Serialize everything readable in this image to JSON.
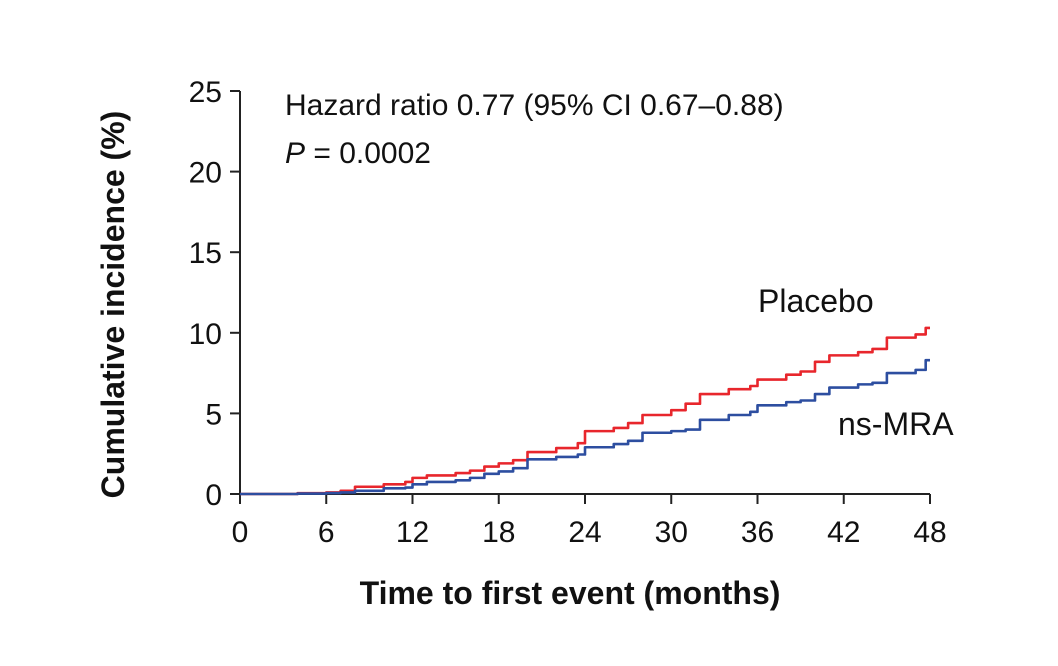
{
  "chart_data": {
    "type": "line",
    "title": "",
    "xlabel": "Time to first event (months)",
    "ylabel": "Cumulative incidence (%)",
    "xlim": [
      0,
      48
    ],
    "ylim": [
      0,
      25
    ],
    "xticks": [
      0,
      6,
      12,
      18,
      24,
      30,
      36,
      42,
      48
    ],
    "yticks": [
      0,
      5,
      10,
      15,
      20,
      25
    ],
    "xtick_labels": [
      "0",
      "6",
      "12",
      "18",
      "24",
      "30",
      "36",
      "42",
      "48"
    ],
    "ytick_labels": [
      "0",
      "5",
      "10",
      "15",
      "20",
      "25"
    ],
    "grid": false,
    "annotations": {
      "hazard_ratio": "Hazard ratio 0.77 (95% CI 0.67–0.88)",
      "p_label": "P",
      "p_value": " = 0.0002"
    },
    "series": [
      {
        "name": "Placebo",
        "color": "#e8262c",
        "x": [
          0,
          4,
          6,
          7,
          8,
          10,
          11.5,
          12,
          13,
          15,
          16,
          17,
          18,
          19,
          20,
          22,
          23.5,
          24,
          26,
          27,
          28,
          30,
          31,
          32,
          34,
          35.5,
          36,
          38,
          39,
          40,
          41,
          43,
          44,
          45,
          47,
          47.7,
          48
        ],
        "y": [
          0,
          0.05,
          0.1,
          0.2,
          0.45,
          0.6,
          0.75,
          1.0,
          1.15,
          1.3,
          1.45,
          1.7,
          1.9,
          2.1,
          2.6,
          2.85,
          3.15,
          3.9,
          4.1,
          4.4,
          4.9,
          5.2,
          5.6,
          6.2,
          6.5,
          6.7,
          7.1,
          7.4,
          7.6,
          8.2,
          8.6,
          8.8,
          9.0,
          9.7,
          9.9,
          10.3,
          10.3
        ]
      },
      {
        "name": "ns-MRA",
        "color": "#2d4ea0",
        "x": [
          0,
          4,
          6,
          7,
          8,
          10,
          11.5,
          12,
          13,
          15,
          16,
          17,
          18,
          19,
          20,
          22,
          23.5,
          24,
          26,
          27,
          28,
          30,
          31,
          32,
          34,
          35.5,
          36,
          38,
          39,
          40,
          41,
          43,
          44,
          45,
          47,
          47.7,
          48
        ],
        "y": [
          0,
          0.03,
          0.06,
          0.1,
          0.2,
          0.35,
          0.4,
          0.6,
          0.75,
          0.85,
          1.0,
          1.25,
          1.4,
          1.6,
          2.15,
          2.3,
          2.45,
          2.9,
          3.1,
          3.3,
          3.8,
          3.9,
          4.0,
          4.6,
          4.9,
          5.1,
          5.5,
          5.7,
          5.8,
          6.2,
          6.6,
          6.8,
          6.9,
          7.5,
          7.7,
          8.3,
          8.3
        ]
      }
    ]
  }
}
